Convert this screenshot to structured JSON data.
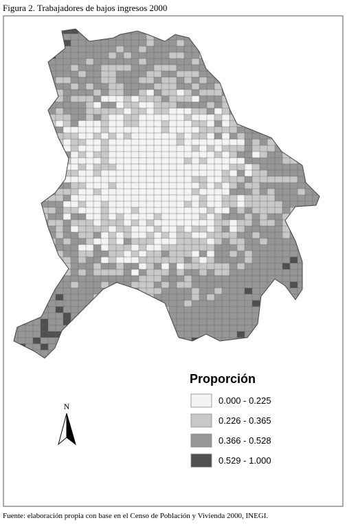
{
  "title": "Figura 2. Trabajadores de bajos ingresos 2000",
  "legend": {
    "title": "Proporción",
    "items": [
      {
        "label": "0.000 - 0.225"
      },
      {
        "label": "0.226 - 0.365"
      },
      {
        "label": "0.366 - 0.528"
      },
      {
        "label": "0.529 - 1.000"
      }
    ]
  },
  "north": "N",
  "source": "Fuente: elaboración propia con base en el Censo de Población y Vivienda 2000, INEGI."
}
